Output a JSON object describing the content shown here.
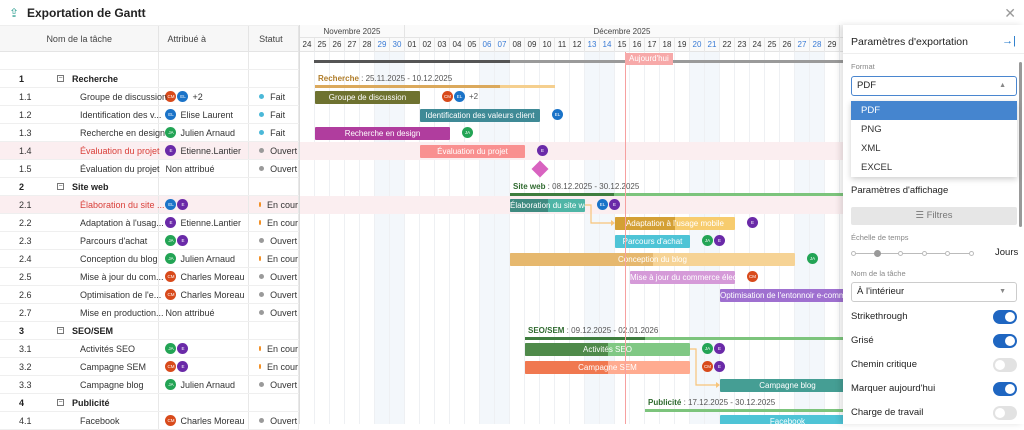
{
  "title": "Exportation de Gantt",
  "icons": {
    "title": "export-upload-icon",
    "close": "close-icon",
    "collapse": "collapse-panel-icon"
  },
  "columns": {
    "name": "Nom de la tâche",
    "assigned": "Attribué à",
    "status": "Statut"
  },
  "avatar_colors": {
    "CM": "#d84a1b",
    "EL": "#1a73c8",
    "JA": "#23a455",
    "E": "#6a2aa8"
  },
  "status_colors": {
    "Fait": "#4bb8d8",
    "Ouvert": "#9a9a9a",
    "En cour": "#f28c1e"
  },
  "timeline": {
    "months": [
      {
        "label": "Novembre 2025",
        "start": "2025-11-24"
      },
      {
        "label": "Décembre 2025",
        "start": "2025-12-01"
      }
    ],
    "first_day": "2025-11-24",
    "days_shown": 36,
    "today": "2025-12-16",
    "today_label": "Aujourd'hui"
  },
  "rows": [
    {
      "num": "",
      "name": "",
      "type": "blank"
    },
    {
      "num": "1",
      "name": "Recherche",
      "type": "group",
      "summary": {
        "label": "Recherche",
        "range": "25.11.2025 - 10.12.2025",
        "start": "2025-11-25",
        "end": "2025-12-10",
        "progress": 0.77,
        "color": "#f5cf8e",
        "pcolor": "#dba95c",
        "lcolor": "#b07d2a"
      }
    },
    {
      "num": "1.1",
      "name": "Groupe de discussion",
      "avatars": [
        "CM",
        "EL"
      ],
      "extra": "+2",
      "status": "Fait",
      "bar": {
        "label": "Groupe de discussion",
        "start": "2025-11-25",
        "end": "2025-12-01",
        "color": "#6e7230"
      }
    },
    {
      "num": "1.2",
      "name": "Identification des v...",
      "avatars": [
        "EL"
      ],
      "assignee": "Elise Laurent",
      "status": "Fait",
      "bar": {
        "label": "Identification des valeurs client",
        "start": "2025-12-02",
        "end": "2025-12-09",
        "color": "#3f8a96"
      }
    },
    {
      "num": "1.3",
      "name": "Recherche en design",
      "avatars": [
        "JA"
      ],
      "assignee": "Julien Arnaud",
      "status": "Fait",
      "bar": {
        "label": "Recherche en design",
        "start": "2025-11-25",
        "end": "2025-12-03",
        "color": "#b03d9e"
      }
    },
    {
      "num": "1.4",
      "name": "Évaluation du projet",
      "avatars": [
        "E"
      ],
      "assignee": "Etienne.Lantier",
      "status": "Ouvert",
      "highlight": true,
      "bar": {
        "label": "Évaluation du projet",
        "start": "2025-12-02",
        "end": "2025-12-08",
        "color": "#f99090"
      }
    },
    {
      "num": "1.5",
      "name": "Évaluation du projet",
      "assignee": "Non attribué",
      "status": "Ouvert",
      "milestone": {
        "date": "2025-12-10",
        "color": "#d863c0"
      }
    },
    {
      "num": "2",
      "name": "Site web",
      "type": "group",
      "summary": {
        "label": "Site web",
        "range": "08.12.2025 - 30.12.2025",
        "start": "2025-12-08",
        "end": "2025-12-30",
        "progress": 0.3,
        "color": "#7cc47c",
        "pcolor": "#3e7d3e",
        "lcolor": "#2f6a2f"
      }
    },
    {
      "num": "2.1",
      "name": "Élaboration du site ...",
      "avatars": [
        "EL",
        "E"
      ],
      "status": "En cour",
      "highlight": true,
      "bar": {
        "label": "Élaboration du site web",
        "start": "2025-12-08",
        "end": "2025-12-12",
        "color": "#4fb5a6",
        "pcolor": "#3f8a80",
        "progress": 0.5
      }
    },
    {
      "num": "2.2",
      "name": "Adaptation à l'usag...",
      "avatars": [
        "E"
      ],
      "assignee": "Etienne.Lantier",
      "status": "En cour",
      "bar": {
        "label": "Adaptation à l'usage mobile",
        "start": "2025-12-15",
        "end": "2025-12-22",
        "color": "#f7cc6e",
        "pcolor": "#d4a035",
        "progress": 0.5
      }
    },
    {
      "num": "2.3",
      "name": "Parcours d'achat",
      "avatars": [
        "JA",
        "E"
      ],
      "status": "Ouvert",
      "bar": {
        "label": "Parcours d'achat",
        "start": "2025-12-15",
        "end": "2025-12-19",
        "color": "#4ec4d6"
      }
    },
    {
      "num": "2.4",
      "name": "Conception du blog",
      "avatars": [
        "JA"
      ],
      "assignee": "Julien Arnaud",
      "status": "En cour",
      "bar": {
        "label": "Conception du blog",
        "start": "2025-12-08",
        "end": "2025-12-26",
        "color": "#f6d395",
        "pcolor": "#e6b86e",
        "progress": 0.5
      }
    },
    {
      "num": "2.5",
      "name": "Mise à jour du com...",
      "avatars": [
        "CM"
      ],
      "assignee": "Charles Moreau",
      "status": "Ouvert",
      "bar": {
        "label": "Mise à jour du commerce électr...",
        "start": "2025-12-16",
        "end": "2025-12-22",
        "color": "#d59ad8"
      }
    },
    {
      "num": "2.6",
      "name": "Optimisation de l'e...",
      "avatars": [
        "CM"
      ],
      "assignee": "Charles Moreau",
      "status": "Ouvert",
      "bar": {
        "label": "Optimisation de l'entonnoir e-commerce",
        "start": "2025-12-22",
        "end": "2025-12-30",
        "color": "#9f70d0"
      }
    },
    {
      "num": "2.7",
      "name": "Mise en production...",
      "assignee": "Non attribué",
      "status": "Ouvert"
    },
    {
      "num": "3",
      "name": "SEO/SEM",
      "type": "group",
      "summary": {
        "label": "SEO/SEM",
        "range": "09.12.2025 - 02.01.2026",
        "start": "2025-12-09",
        "end": "2026-01-02",
        "progress": 0.32,
        "color": "#7cc47c",
        "pcolor": "#3e7d3e",
        "lcolor": "#2f6a2f"
      }
    },
    {
      "num": "3.1",
      "name": "Activités SEO",
      "avatars": [
        "JA",
        "E"
      ],
      "status": "En cour",
      "bar": {
        "label": "Activités SEO",
        "start": "2025-12-09",
        "end": "2025-12-19",
        "color": "#80c884",
        "pcolor": "#4f8a4a",
        "progress": 0.5
      }
    },
    {
      "num": "3.2",
      "name": "Campagne SEM",
      "avatars": [
        "CM",
        "E"
      ],
      "status": "En cour",
      "bar": {
        "label": "Campagne SEM",
        "start": "2025-12-09",
        "end": "2025-12-19",
        "color": "#ffab90",
        "pcolor": "#f07850",
        "progress": 0.5
      }
    },
    {
      "num": "3.3",
      "name": "Campagne blog",
      "avatars": [
        "JA"
      ],
      "assignee": "Julien Arnaud",
      "status": "Ouvert",
      "bar": {
        "label": "Campagne blog",
        "start": "2025-12-22",
        "end": "2025-12-30",
        "color": "#459e94"
      }
    },
    {
      "num": "4",
      "name": "Publicité",
      "type": "group",
      "summary": {
        "label": "Publicité",
        "range": "17.12.2025 - 30.12.2025",
        "start": "2025-12-17",
        "end": "2025-12-30",
        "progress": 0,
        "color": "#7cc47c",
        "pcolor": "#3e7d3e",
        "lcolor": "#2f6a2f"
      }
    },
    {
      "num": "4.1",
      "name": "Facebook",
      "avatars": [
        "CM"
      ],
      "assignee": "Charles Moreau",
      "status": "Ouvert",
      "bar": {
        "label": "Facebook",
        "start": "2025-12-22",
        "end": "2025-12-30",
        "color": "#4ec4d6"
      }
    }
  ],
  "links": [
    [
      "2.1",
      "2.2"
    ],
    [
      "3.1",
      "3.3"
    ]
  ],
  "panel": {
    "title": "Paramètres d'exportation",
    "format_label": "Format",
    "format_value": "PDF",
    "format_options": [
      "PDF",
      "PNG",
      "XML",
      "EXCEL"
    ],
    "display_title": "Paramètres d'affichage",
    "filters": "Filtres",
    "scale_label": "Échelle de temps",
    "scale_value": "Jours",
    "scale_steps": 6,
    "scale_index": 1,
    "taskname_label": "Nom de la tâche",
    "taskname_value": "À l'intérieur",
    "toggles": [
      {
        "label": "Strikethrough",
        "on": true
      },
      {
        "label": "Grisé",
        "on": true
      },
      {
        "label": "Chemin critique",
        "on": false
      },
      {
        "label": "Marquer aujourd'hui",
        "on": true
      },
      {
        "label": "Charge de travail",
        "on": false
      }
    ]
  }
}
